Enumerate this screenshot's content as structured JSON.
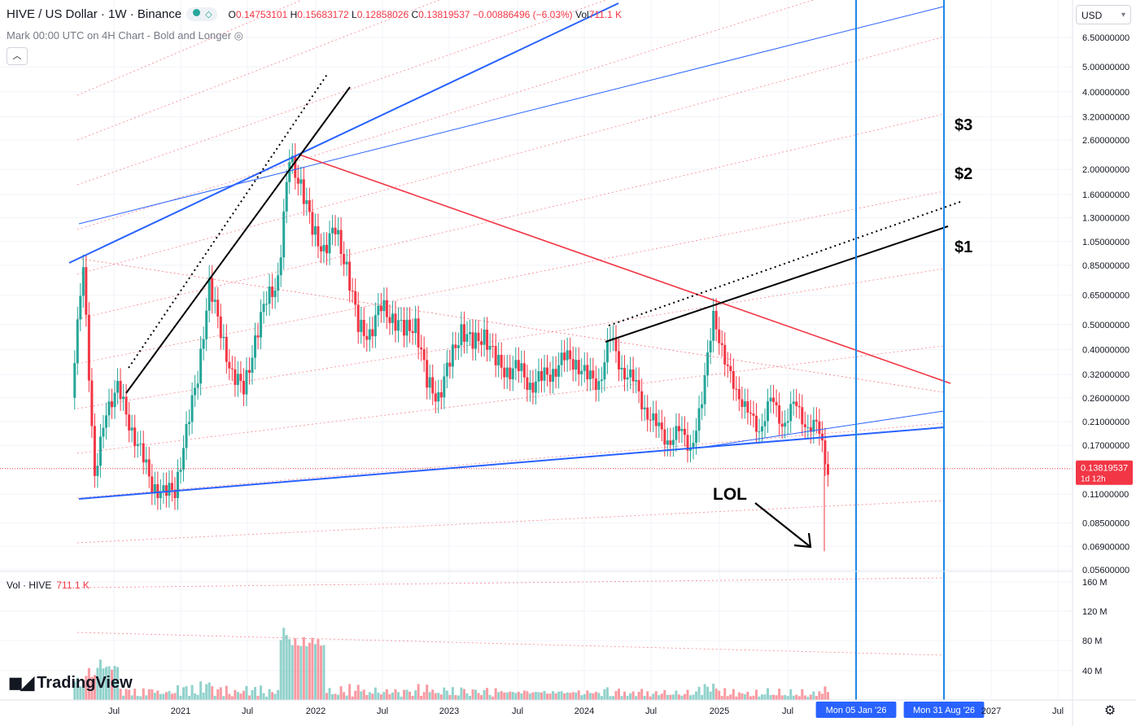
{
  "header": {
    "symbol": "HIVE / US Dollar · 1W · Binance",
    "ohlc": {
      "open_label": "O",
      "open": "0.14753101",
      "high_label": "H",
      "high": "0.15683172",
      "low_label": "L",
      "low": "0.12858026",
      "close_label": "C",
      "close": "0.13819537",
      "change": "−0.00886496 (−6.03%)",
      "vol_label": "Vol",
      "vol": "711.1 K"
    },
    "indicator": "Mark 00:00 UTC on 4H Chart - Bold and Longer",
    "currency": "USD"
  },
  "volume_legend": {
    "label": "Vol · HIVE",
    "value": "711.1 K"
  },
  "brand": "TradingView",
  "colors": {
    "up": "#26a69a",
    "down": "#f23645",
    "blue_line": "#2962ff",
    "cyan_line": "#1e88e5",
    "red_line": "#f23645"
  },
  "chart_data": {
    "type": "candlestick",
    "scale": "log",
    "price_axis_labels": [
      "6.50000000",
      "5.00000000",
      "4.00000000",
      "3.20000000",
      "2.60000000",
      "2.00000000",
      "1.60000000",
      "1.30000000",
      "1.05000000",
      "0.85000000",
      "0.65000000",
      "0.50000000",
      "0.40000000",
      "0.32000000",
      "0.26000000",
      "0.21000000",
      "0.17000000",
      "0.13819537",
      "0.11000000",
      "0.08500000",
      "0.06900000",
      "0.05600000"
    ],
    "volume_axis_labels": [
      "160 M",
      "120 M",
      "80 M",
      "40 M"
    ],
    "time_axis_labels": [
      "Jul",
      "2021",
      "Jul",
      "2022",
      "Jul",
      "2023",
      "Jul",
      "2024",
      "Jul",
      "2025",
      "Jul",
      "Mon 05 Jan '26",
      "Mon 31 Aug '26",
      "2027",
      "Jul"
    ],
    "current_price": {
      "value": "0.13819537",
      "countdown": "1d 12h"
    },
    "annotations": [
      "$3",
      "$2",
      "$1",
      "LOL"
    ],
    "price_path": [
      [
        "2020-04",
        0.26
      ],
      [
        "2020-05",
        0.9
      ],
      [
        "2020-06",
        0.12
      ],
      [
        "2020-07",
        0.24
      ],
      [
        "2020-08",
        0.28
      ],
      [
        "2020-09",
        0.21
      ],
      [
        "2020-10",
        0.16
      ],
      [
        "2020-11",
        0.12
      ],
      [
        "2020-12",
        0.11
      ],
      [
        "2021-01",
        0.115
      ],
      [
        "2021-02",
        0.19
      ],
      [
        "2021-03",
        0.32
      ],
      [
        "2021-04",
        0.7
      ],
      [
        "2021-05",
        0.48
      ],
      [
        "2021-06",
        0.31
      ],
      [
        "2021-07",
        0.29
      ],
      [
        "2021-08",
        0.42
      ],
      [
        "2021-09",
        0.65
      ],
      [
        "2021-10",
        0.72
      ],
      [
        "2021-11",
        2.3
      ],
      [
        "2021-12",
        1.7
      ],
      [
        "2022-01",
        1.2
      ],
      [
        "2022-02",
        0.95
      ],
      [
        "2022-03",
        1.2
      ],
      [
        "2022-04",
        0.82
      ],
      [
        "2022-05",
        0.5
      ],
      [
        "2022-06",
        0.45
      ],
      [
        "2022-07",
        0.6
      ],
      [
        "2022-08",
        0.52
      ],
      [
        "2022-09",
        0.48
      ],
      [
        "2022-10",
        0.5
      ],
      [
        "2022-11",
        0.3
      ],
      [
        "2022-12",
        0.26
      ],
      [
        "2023-01",
        0.36
      ],
      [
        "2023-02",
        0.48
      ],
      [
        "2023-03",
        0.42
      ],
      [
        "2023-04",
        0.46
      ],
      [
        "2023-05",
        0.36
      ],
      [
        "2023-06",
        0.33
      ],
      [
        "2023-07",
        0.34
      ],
      [
        "2023-08",
        0.29
      ],
      [
        "2023-09",
        0.31
      ],
      [
        "2023-10",
        0.33
      ],
      [
        "2023-11",
        0.37
      ],
      [
        "2023-12",
        0.36
      ],
      [
        "2024-01",
        0.31
      ],
      [
        "2024-02",
        0.3
      ],
      [
        "2024-03",
        0.44
      ],
      [
        "2024-04",
        0.34
      ],
      [
        "2024-05",
        0.3
      ],
      [
        "2024-06",
        0.24
      ],
      [
        "2024-07",
        0.2
      ],
      [
        "2024-08",
        0.18
      ],
      [
        "2024-09",
        0.19
      ],
      [
        "2024-10",
        0.17
      ],
      [
        "2024-11",
        0.24
      ],
      [
        "2024-12",
        0.58
      ],
      [
        "2025-01",
        0.34
      ],
      [
        "2025-02",
        0.29
      ],
      [
        "2025-03",
        0.22
      ],
      [
        "2025-04",
        0.2
      ],
      [
        "2025-05",
        0.25
      ],
      [
        "2025-06",
        0.21
      ],
      [
        "2025-07",
        0.24
      ],
      [
        "2025-08",
        0.21
      ],
      [
        "2025-09",
        0.2
      ],
      [
        "2025-10",
        0.138
      ]
    ]
  }
}
